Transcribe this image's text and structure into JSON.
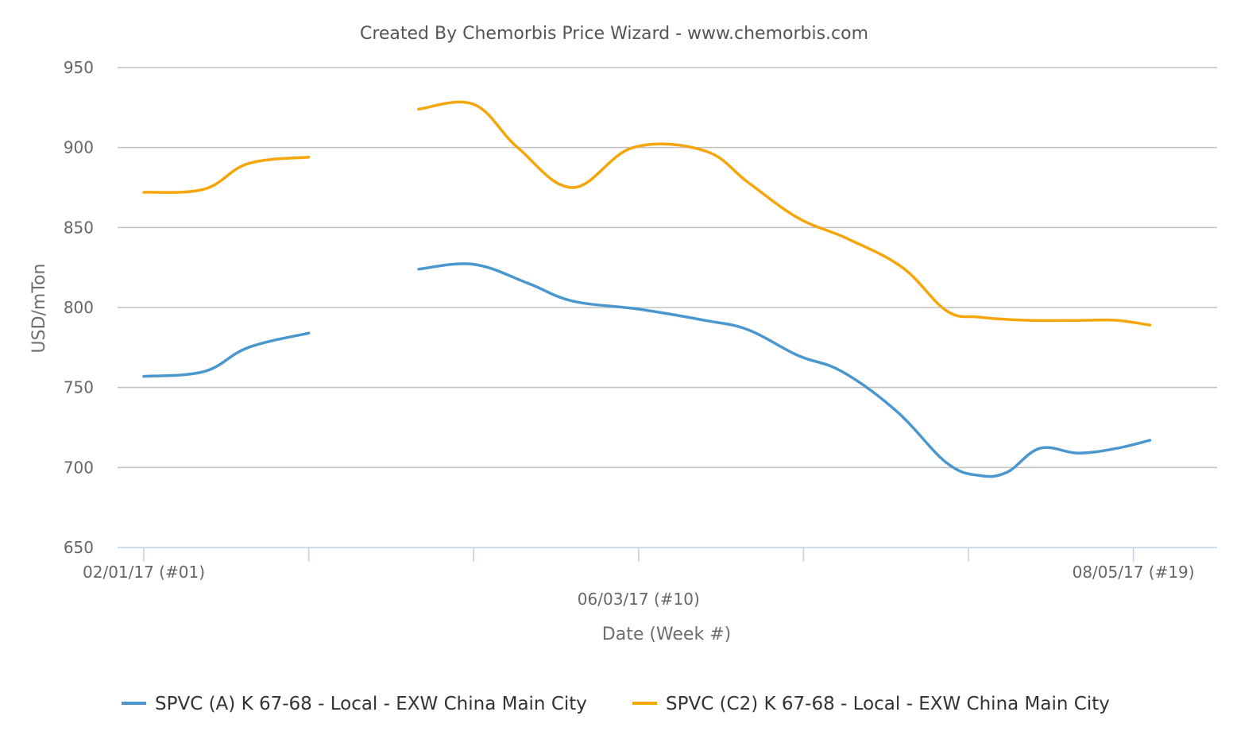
{
  "chart_data": {
    "type": "line",
    "title": "Created By Chemorbis Price Wizard - www.chemorbis.com",
    "xlabel": "Date (Week #)",
    "ylabel": "USD/mTon",
    "ylim": [
      650,
      950
    ],
    "yticks": [
      650,
      700,
      750,
      800,
      850,
      900,
      950
    ],
    "grid": true,
    "legend_position": "bottom",
    "x_week_range": [
      1,
      19.3
    ],
    "x_tick_weeks": [
      1,
      4,
      7,
      10,
      13,
      16,
      19
    ],
    "x_tick_labels": [
      {
        "week": 1,
        "label": "02/01/17 (#01)",
        "row": 1
      },
      {
        "week": 10,
        "label": "06/03/17 (#10)",
        "row": 2
      },
      {
        "week": 19,
        "label": "08/05/17 (#19)",
        "row": 1
      }
    ],
    "series": [
      {
        "name": "SPVC (A) K 67-68 - Local - EXW China Main City",
        "color": "#4a97cf",
        "segments": [
          [
            [
              1,
              757
            ],
            [
              2.1,
              760
            ],
            [
              2.9,
              775
            ],
            [
              4,
              784
            ]
          ],
          [
            [
              6,
              824
            ],
            [
              7,
              827
            ],
            [
              8,
              815
            ],
            [
              8.8,
              804
            ],
            [
              10,
              799
            ],
            [
              11.2,
              792
            ],
            [
              12,
              786
            ],
            [
              12.9,
              770
            ],
            [
              13.7,
              760
            ],
            [
              14.7,
              735
            ],
            [
              15.6,
              703
            ],
            [
              16.2,
              695
            ],
            [
              16.7,
              697
            ],
            [
              17.3,
              712
            ],
            [
              18,
              709
            ],
            [
              18.7,
              712
            ],
            [
              19.3,
              717
            ]
          ]
        ]
      },
      {
        "name": "SPVC (C2) K 67-68 - Local - EXW China Main City",
        "color": "#f5a60a",
        "segments": [
          [
            [
              1,
              872
            ],
            [
              2.1,
              874
            ],
            [
              2.9,
              890
            ],
            [
              4,
              894
            ]
          ],
          [
            [
              6,
              924
            ],
            [
              7,
              927
            ],
            [
              7.8,
              900
            ],
            [
              8.8,
              875
            ],
            [
              9.9,
              900
            ],
            [
              11.2,
              898
            ],
            [
              12,
              878
            ],
            [
              12.9,
              856
            ],
            [
              13.8,
              843
            ],
            [
              14.8,
              825
            ],
            [
              15.6,
              798
            ],
            [
              16.2,
              794
            ],
            [
              17.1,
              792
            ],
            [
              18.1,
              792
            ],
            [
              18.7,
              792
            ],
            [
              19.3,
              789
            ]
          ]
        ]
      }
    ]
  }
}
